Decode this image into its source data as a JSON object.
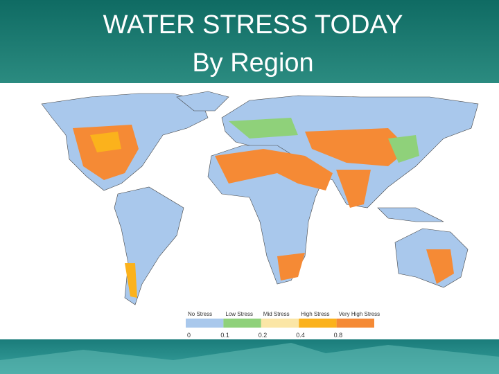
{
  "header": {
    "title": "WATER STRESS TODAY",
    "subtitle": "By Region"
  },
  "legend": {
    "categories": [
      {
        "label": "No Stress",
        "color": "#a9c8ec"
      },
      {
        "label": "Low Stress",
        "color": "#8fd17a"
      },
      {
        "label": "Mid Stress",
        "color": "#fbe6a6"
      },
      {
        "label": "High Stress",
        "color": "#fbb21c"
      },
      {
        "label": "Very High Stress",
        "color": "#f58a35"
      }
    ],
    "thresholds": [
      0,
      0.1,
      0.2,
      0.4,
      0.8
    ]
  }
}
